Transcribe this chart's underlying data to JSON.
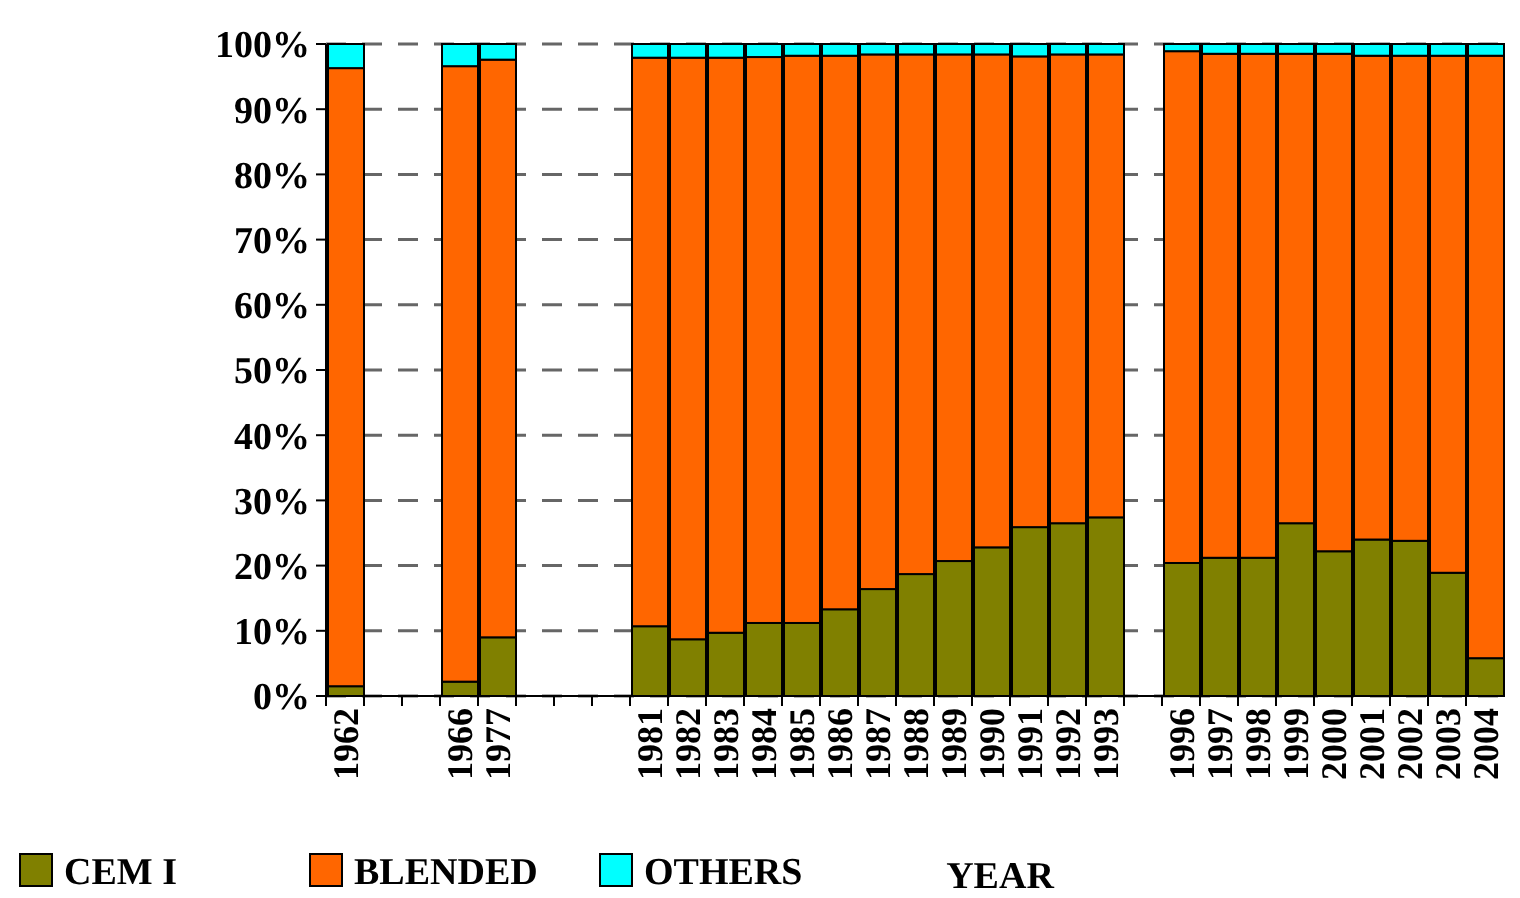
{
  "chart_data": {
    "type": "bar",
    "stacked": true,
    "xlabel": "YEAR",
    "categories": [
      "1962",
      null,
      null,
      "1966",
      "1977",
      null,
      null,
      null,
      "1981",
      "1982",
      "1983",
      "1984",
      "1985",
      "1986",
      "1987",
      "1988",
      "1989",
      "1990",
      "1991",
      "1992",
      "1993",
      null,
      "1996",
      "1997",
      "1998",
      "1999",
      "2000",
      "2001",
      "2002",
      "2003",
      "2004"
    ],
    "series": [
      {
        "name": "CEM I",
        "color": "#808000",
        "values": [
          1.5,
          null,
          null,
          2.2,
          9.0,
          null,
          null,
          null,
          10.7,
          8.7,
          9.7,
          11.2,
          11.2,
          13.3,
          16.4,
          18.7,
          20.7,
          22.8,
          25.9,
          26.5,
          27.4,
          null,
          20.4,
          21.2,
          21.2,
          26.5,
          22.2,
          24.0,
          23.8,
          18.9,
          5.8
        ]
      },
      {
        "name": "BLENDED",
        "color": "#ff6600",
        "values": [
          94.8,
          null,
          null,
          94.4,
          88.6,
          null,
          null,
          null,
          87.2,
          89.2,
          88.2,
          86.8,
          87.0,
          84.9,
          82.0,
          79.7,
          77.7,
          75.6,
          72.2,
          71.9,
          71.0,
          null,
          78.5,
          77.3,
          77.3,
          72.0,
          76.3,
          74.2,
          74.4,
          79.3,
          92.4
        ]
      },
      {
        "name": "OTHERS",
        "color": "#00ffff",
        "values": [
          3.7,
          null,
          null,
          3.4,
          2.4,
          null,
          null,
          null,
          2.1,
          2.1,
          2.1,
          2.0,
          1.8,
          1.8,
          1.6,
          1.6,
          1.6,
          1.6,
          1.9,
          1.6,
          1.6,
          null,
          1.1,
          1.5,
          1.5,
          1.5,
          1.5,
          1.8,
          1.8,
          1.8,
          1.8
        ]
      }
    ],
    "ylim": [
      0,
      100
    ],
    "yticks": [
      {
        "value": 0,
        "label": "0%"
      },
      {
        "value": 10,
        "label": "10%"
      },
      {
        "value": 20,
        "label": "20%"
      },
      {
        "value": 30,
        "label": "30%"
      },
      {
        "value": 40,
        "label": "40%"
      },
      {
        "value": 50,
        "label": "50%"
      },
      {
        "value": 60,
        "label": "60%"
      },
      {
        "value": 70,
        "label": "70%"
      },
      {
        "value": 80,
        "label": "80%"
      },
      {
        "value": 90,
        "label": "90%"
      },
      {
        "value": 100,
        "label": "100%"
      }
    ],
    "grid": "y",
    "legend": "bottom"
  }
}
